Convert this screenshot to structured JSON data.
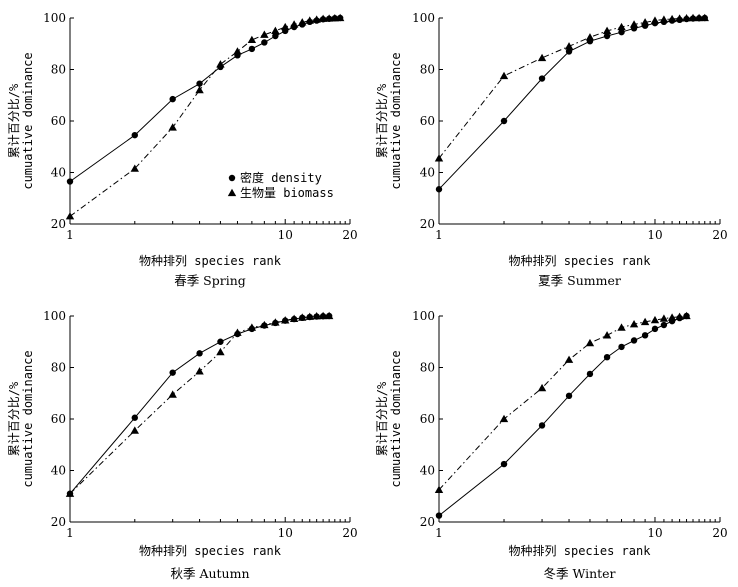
{
  "figure": {
    "ylabel_line1": "累计百分比/%",
    "ylabel_line2": "cumuative dominance",
    "xlabel": "物种排列 species rank",
    "x_ticks": [
      "1",
      "10",
      "20"
    ],
    "y_ticks": [
      "20",
      "40",
      "60",
      "80",
      "100"
    ],
    "legend": {
      "density": "密度 density",
      "biomass": "生物量 biomass"
    }
  },
  "chart_data": [
    {
      "type": "line",
      "title": "春季 Spring",
      "xlabel": "物种排列 species rank",
      "ylabel": "累计百分比/% cumuative dominance",
      "xscale": "log",
      "xlim": [
        1,
        20
      ],
      "ylim": [
        20,
        100
      ],
      "legend_position": "lower-right",
      "series": [
        {
          "name": "密度 density",
          "marker": "circle",
          "line": "solid",
          "x": [
            1,
            2,
            3,
            4,
            5,
            6,
            7,
            8,
            9,
            10,
            11,
            12,
            13,
            14,
            15,
            16,
            17,
            18
          ],
          "y": [
            36.5,
            54.5,
            68.5,
            74.5,
            81,
            85.5,
            88,
            90.5,
            93,
            95,
            96.5,
            97.5,
            98.5,
            99,
            99.5,
            99.7,
            99.9,
            100
          ]
        },
        {
          "name": "生物量 biomass",
          "marker": "triangle",
          "line": "dashdot",
          "x": [
            1,
            2,
            3,
            4,
            5,
            6,
            7,
            8,
            9,
            10,
            11,
            12,
            13,
            14,
            15,
            16,
            17,
            18
          ],
          "y": [
            23,
            41.5,
            57.5,
            72,
            82,
            87,
            91.5,
            93.5,
            95,
            96.5,
            97.5,
            98.3,
            99,
            99.4,
            99.7,
            99.8,
            99.9,
            100
          ]
        }
      ]
    },
    {
      "type": "line",
      "title": "夏季 Summer",
      "xlabel": "物种排列 species rank",
      "ylabel": "累计百分比/% cumuative dominance",
      "xscale": "log",
      "xlim": [
        1,
        20
      ],
      "ylim": [
        20,
        100
      ],
      "series": [
        {
          "name": "密度 density",
          "marker": "circle",
          "line": "solid",
          "x": [
            1,
            2,
            3,
            4,
            5,
            6,
            7,
            8,
            9,
            10,
            11,
            12,
            13,
            14,
            15,
            16,
            17
          ],
          "y": [
            33.5,
            60,
            76.5,
            87,
            91,
            93,
            94.5,
            96,
            97,
            98,
            98.5,
            99,
            99.3,
            99.6,
            99.8,
            99.9,
            100
          ]
        },
        {
          "name": "生物量 biomass",
          "marker": "triangle",
          "line": "dashdot",
          "x": [
            1,
            2,
            3,
            4,
            5,
            6,
            7,
            8,
            9,
            10,
            11,
            12,
            13,
            14,
            15,
            16,
            17
          ],
          "y": [
            45.5,
            77.5,
            84.5,
            89,
            92.5,
            95,
            96.5,
            97.5,
            98.3,
            99,
            99.4,
            99.6,
            99.8,
            99.9,
            100,
            100,
            100
          ]
        }
      ]
    },
    {
      "type": "line",
      "title": "秋季 Autumn",
      "xlabel": "物种排列 species rank",
      "ylabel": "累计百分比/% cumuative dominance",
      "xscale": "log",
      "xlim": [
        1,
        20
      ],
      "ylim": [
        20,
        100
      ],
      "series": [
        {
          "name": "密度 density",
          "marker": "circle",
          "line": "solid",
          "x": [
            1,
            2,
            3,
            4,
            5,
            6,
            7,
            8,
            9,
            10,
            11,
            12,
            13,
            14,
            15,
            16
          ],
          "y": [
            31,
            60.5,
            78,
            85.5,
            90,
            93,
            95,
            96.3,
            97.3,
            98.2,
            98.8,
            99.3,
            99.6,
            99.8,
            99.9,
            100
          ]
        },
        {
          "name": "生物量 biomass",
          "marker": "triangle",
          "line": "dashdot",
          "x": [
            1,
            2,
            3,
            4,
            5,
            6,
            7,
            8,
            9,
            10,
            11,
            12,
            13,
            14,
            15,
            16
          ],
          "y": [
            31,
            55.5,
            69.5,
            78.5,
            86,
            93.5,
            95.5,
            96.5,
            97.5,
            98.3,
            98.9,
            99.4,
            99.7,
            99.9,
            100,
            100
          ]
        }
      ]
    },
    {
      "type": "line",
      "title": "冬季 Winter",
      "xlabel": "物种排列 species rank",
      "ylabel": "累计百分比/% cumuative dominance",
      "xscale": "log",
      "xlim": [
        1,
        20
      ],
      "ylim": [
        20,
        100
      ],
      "series": [
        {
          "name": "密度 density",
          "marker": "circle",
          "line": "solid",
          "x": [
            1,
            2,
            3,
            4,
            5,
            6,
            7,
            8,
            9,
            10,
            11,
            12,
            13,
            14
          ],
          "y": [
            22.5,
            42.5,
            57.5,
            69,
            77.5,
            84,
            88,
            90.5,
            92.5,
            95,
            96.5,
            98,
            99.2,
            100
          ]
        },
        {
          "name": "生物量 biomass",
          "marker": "triangle",
          "line": "dashdot",
          "x": [
            1,
            2,
            3,
            4,
            5,
            6,
            7,
            8,
            9,
            10,
            11,
            12,
            13,
            14
          ],
          "y": [
            32.5,
            60,
            72,
            83,
            89.5,
            92.5,
            95.5,
            96.8,
            97.7,
            98.4,
            99,
            99.4,
            99.7,
            100
          ]
        }
      ]
    }
  ]
}
